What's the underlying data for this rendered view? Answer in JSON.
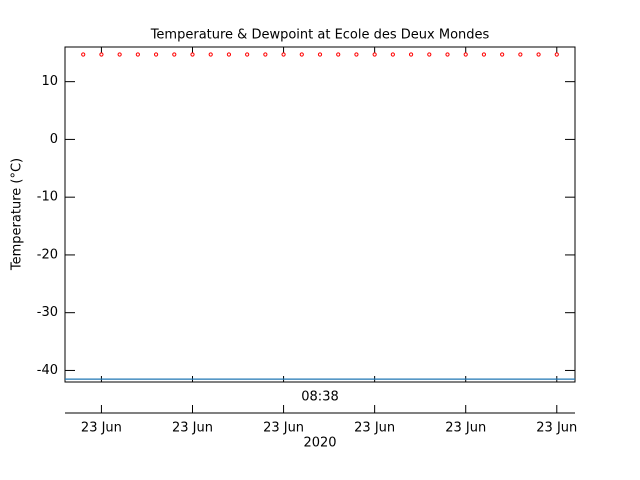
{
  "chart_data": {
    "type": "scatter",
    "title": "Temperature & Dewpoint at Ecole des Deux Mondes",
    "ylabel": "Temperature (°C)",
    "xlabel": "2020",
    "annotation": "08:38",
    "series": [
      {
        "name": null,
        "color": "#ff0000",
        "marker": "dot",
        "x": [
          0,
          1,
          2,
          3,
          4,
          5,
          6,
          7,
          8,
          9,
          10,
          11,
          12,
          13,
          14,
          15,
          16,
          17,
          18,
          19,
          20,
          21,
          22,
          23,
          24,
          25,
          26
        ],
        "values": [
          14.7,
          14.7,
          14.7,
          14.7,
          14.7,
          14.7,
          14.7,
          14.7,
          14.7,
          14.7,
          14.7,
          14.7,
          14.7,
          14.7,
          14.7,
          14.7,
          14.7,
          14.7,
          14.7,
          14.7,
          14.7,
          14.7,
          14.7,
          14.7,
          14.7,
          14.7,
          14.7
        ]
      },
      {
        "name": null,
        "color": "#1f77b4",
        "marker": "line",
        "x": [
          -1,
          27
        ],
        "values": [
          -41.5,
          -41.5
        ]
      }
    ],
    "xlim": [
      -1,
      27
    ],
    "xticks": [
      {
        "value": 1,
        "label": "23 Jun"
      },
      {
        "value": 6,
        "label": "23 Jun"
      },
      {
        "value": 11,
        "label": "23 Jun"
      },
      {
        "value": 16,
        "label": "23 Jun"
      },
      {
        "value": 21,
        "label": "23 Jun"
      },
      {
        "value": 26,
        "label": "23 Jun"
      }
    ],
    "ylim": [
      -42,
      16
    ],
    "yticks": [
      -40,
      -30,
      -20,
      -10,
      0,
      10
    ]
  }
}
